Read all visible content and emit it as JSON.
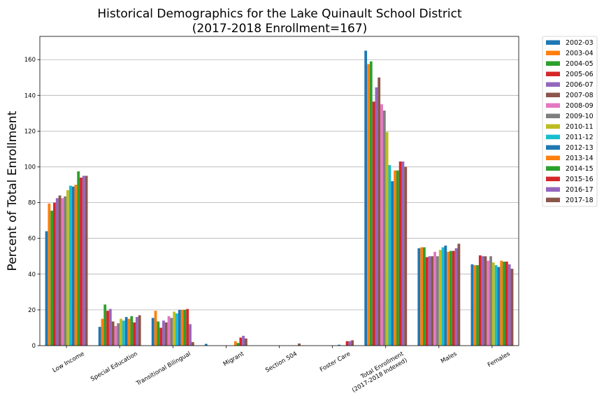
{
  "chart_data": {
    "type": "bar",
    "title": "Historical Demographics for the Lake Quinault School District",
    "subtitle": "(2017-2018 Enrollment=167)",
    "ylabel": "Percent of Total Enrollment",
    "xlabel": "",
    "ylim": [
      0,
      173
    ],
    "yticks": [
      0,
      20,
      40,
      60,
      80,
      100,
      120,
      140,
      160
    ],
    "grid": "horizontal",
    "legend_position": "outside-right",
    "categories": [
      "Low Income",
      "Special Education",
      "Transitional Bilingual",
      "Migrant",
      "Section 504",
      "Foster Care",
      "Total Enrollment\n(2017-2018 Indexed)",
      "Males",
      "Females"
    ],
    "series": [
      {
        "name": "2002-03",
        "color": "#1f77b4",
        "values": [
          64,
          10.5,
          15.5,
          1,
          0,
          0,
          165,
          54.5,
          45.5
        ]
      },
      {
        "name": "2003-04",
        "color": "#ff7f0e",
        "values": [
          79.5,
          15,
          19.5,
          0,
          0,
          0,
          157.5,
          55,
          45
        ]
      },
      {
        "name": "2004-05",
        "color": "#2ca02c",
        "values": [
          75.5,
          23,
          13.5,
          0,
          0,
          0,
          159,
          55,
          45
        ]
      },
      {
        "name": "2005-06",
        "color": "#d62728",
        "values": [
          80,
          19.5,
          10,
          0,
          0,
          0,
          136.5,
          49.5,
          50.5
        ]
      },
      {
        "name": "2006-07",
        "color": "#9467bd",
        "values": [
          82.5,
          20.5,
          14,
          0,
          0,
          0,
          144.5,
          50,
          50
        ]
      },
      {
        "name": "2007-08",
        "color": "#8c564b",
        "values": [
          84,
          13.5,
          13,
          0,
          0,
          0,
          150,
          50,
          50
        ]
      },
      {
        "name": "2008-09",
        "color": "#e377c2",
        "values": [
          82.5,
          11,
          16.5,
          0,
          0,
          0,
          135,
          52.5,
          47.5
        ]
      },
      {
        "name": "2009-10",
        "color": "#7f7f7f",
        "values": [
          83.5,
          12.5,
          15.5,
          0,
          0,
          0,
          131.5,
          50,
          50
        ]
      },
      {
        "name": "2010-11",
        "color": "#bcbd22",
        "values": [
          87,
          15,
          19,
          0,
          0,
          0,
          119.5,
          53.5,
          46.5
        ]
      },
      {
        "name": "2011-12",
        "color": "#17becf",
        "values": [
          89.5,
          14,
          18,
          0,
          0,
          0,
          101,
          55,
          45
        ]
      },
      {
        "name": "2012-13",
        "color": "#1f77b4",
        "values": [
          89,
          16,
          20,
          0,
          0,
          0.5,
          92,
          56,
          44
        ]
      },
      {
        "name": "2013-14",
        "color": "#ff7f0e",
        "values": [
          90,
          15,
          20,
          2.5,
          0,
          0,
          98,
          52.5,
          47.5
        ]
      },
      {
        "name": "2014-15",
        "color": "#2ca02c",
        "values": [
          97.5,
          16.5,
          20,
          1.5,
          0,
          0,
          98,
          53,
          47
        ]
      },
      {
        "name": "2015-16",
        "color": "#d62728",
        "values": [
          94,
          13,
          20.5,
          4.5,
          0,
          2.5,
          103,
          53,
          47
        ]
      },
      {
        "name": "2016-17",
        "color": "#9467bd",
        "values": [
          95,
          16,
          12,
          5.5,
          0,
          2.5,
          103,
          54.5,
          45.5
        ]
      },
      {
        "name": "2017-18",
        "color": "#8c564b",
        "values": [
          95,
          17,
          2,
          4,
          1.2,
          3,
          100,
          57,
          43
        ]
      }
    ]
  }
}
